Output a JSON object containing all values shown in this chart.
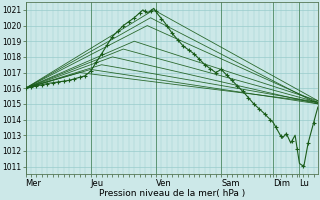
{
  "xlabel": "Pression niveau de la mer( hPa )",
  "ylim": [
    1010.5,
    1021.5
  ],
  "yticks": [
    1011,
    1012,
    1013,
    1014,
    1015,
    1016,
    1017,
    1018,
    1019,
    1020,
    1021
  ],
  "day_labels": [
    "Mer",
    "Jeu",
    "Ven",
    "Sam",
    "Dim",
    "Lu"
  ],
  "day_positions": [
    0,
    60,
    120,
    180,
    228,
    252
  ],
  "total_points": 270,
  "background_color": "#cce8e8",
  "grid_color": "#99cccc",
  "line_color": "#1a5c1a"
}
